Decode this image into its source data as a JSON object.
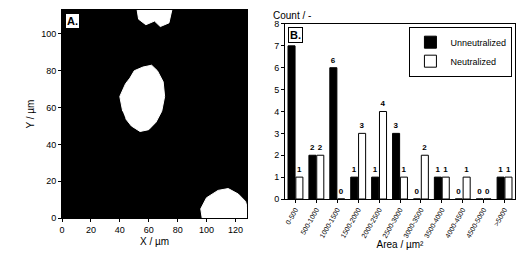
{
  "chart_data": [
    {
      "type": "image",
      "annotations": [
        "A."
      ],
      "x_label": "X / µm",
      "y_label": "Y / µm",
      "xlim": [
        0,
        128
      ],
      "ylim": [
        0,
        113
      ],
      "xticks": [
        0,
        20,
        40,
        60,
        80,
        100,
        120
      ],
      "yticks": [
        0,
        20,
        40,
        60,
        80,
        100
      ],
      "color": "#000000",
      "series": [
        {
          "color": "#ffffff",
          "x": [
            42,
            40,
            44,
            47,
            50,
            56,
            62,
            66,
            70,
            71,
            69,
            65,
            60,
            54,
            48,
            44
          ],
          "y": [
            58,
            66,
            73,
            76,
            80,
            82,
            83,
            80,
            74,
            66,
            58,
            52,
            48,
            47,
            50,
            54
          ]
        },
        {
          "color": "#ffffff",
          "x": [
            52,
            53,
            58,
            64,
            68,
            74,
            76
          ],
          "y": [
            113,
            108,
            105,
            107,
            104,
            106,
            113
          ]
        },
        {
          "color": "#ffffff",
          "x": [
            97,
            96,
            100,
            108,
            115,
            122,
            127,
            128,
            128
          ],
          "y": [
            0,
            5,
            11,
            15,
            16,
            13,
            9,
            6,
            0
          ]
        }
      ]
    },
    {
      "type": "bar",
      "annotations": [
        "B."
      ],
      "x_label": "Area / µm²",
      "y_label": "Count / -",
      "categories": [
        "0-500",
        "500-1000",
        "1000-1500",
        "1500-2000",
        "2000-2500",
        "2500-3000",
        "3000-3500",
        "3500-4000",
        "4000-4500",
        "4500-5000",
        ">5000"
      ],
      "series": [
        {
          "name": "Unneutralized",
          "color": "#000000",
          "values": [
            7,
            2,
            6,
            1,
            1,
            3,
            0,
            1,
            0,
            0,
            1
          ]
        },
        {
          "name": "Neutralized",
          "color": "#ffffff",
          "values": [
            1,
            2,
            0,
            3,
            4,
            1,
            2,
            1,
            1,
            0,
            1
          ]
        }
      ],
      "ylim": [
        0,
        8
      ],
      "yticks": [
        0,
        1,
        2,
        3,
        4,
        5,
        6,
        7,
        8
      ],
      "data_labels": true,
      "legend": "top right"
    }
  ]
}
